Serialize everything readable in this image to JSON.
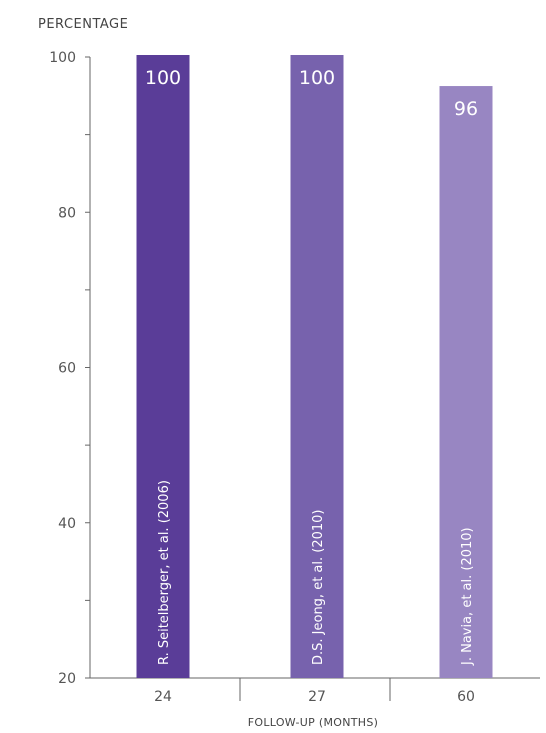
{
  "chart_data": {
    "type": "bar",
    "ylabel": "PERCENTAGE",
    "xlabel": "FOLLOW-UP (MONTHS)",
    "ylim": [
      20,
      100
    ],
    "yticks_labeled": [
      20,
      40,
      60,
      80,
      100
    ],
    "yticks_minor": [
      30,
      50,
      70,
      90
    ],
    "categories": [
      "24",
      "27",
      "60"
    ],
    "values": [
      100,
      100,
      96
    ],
    "value_labels": [
      "100",
      "100",
      "96"
    ],
    "bar_labels": [
      "R. Seitelberger, et al. (2006)",
      "D.S. Jeong, et al. (2010)",
      "J. Navia, et al. (2010)"
    ],
    "bar_colors": [
      "#5a3d98",
      "#7762ad",
      "#9886c2"
    ],
    "grid": false,
    "legend": "none"
  }
}
